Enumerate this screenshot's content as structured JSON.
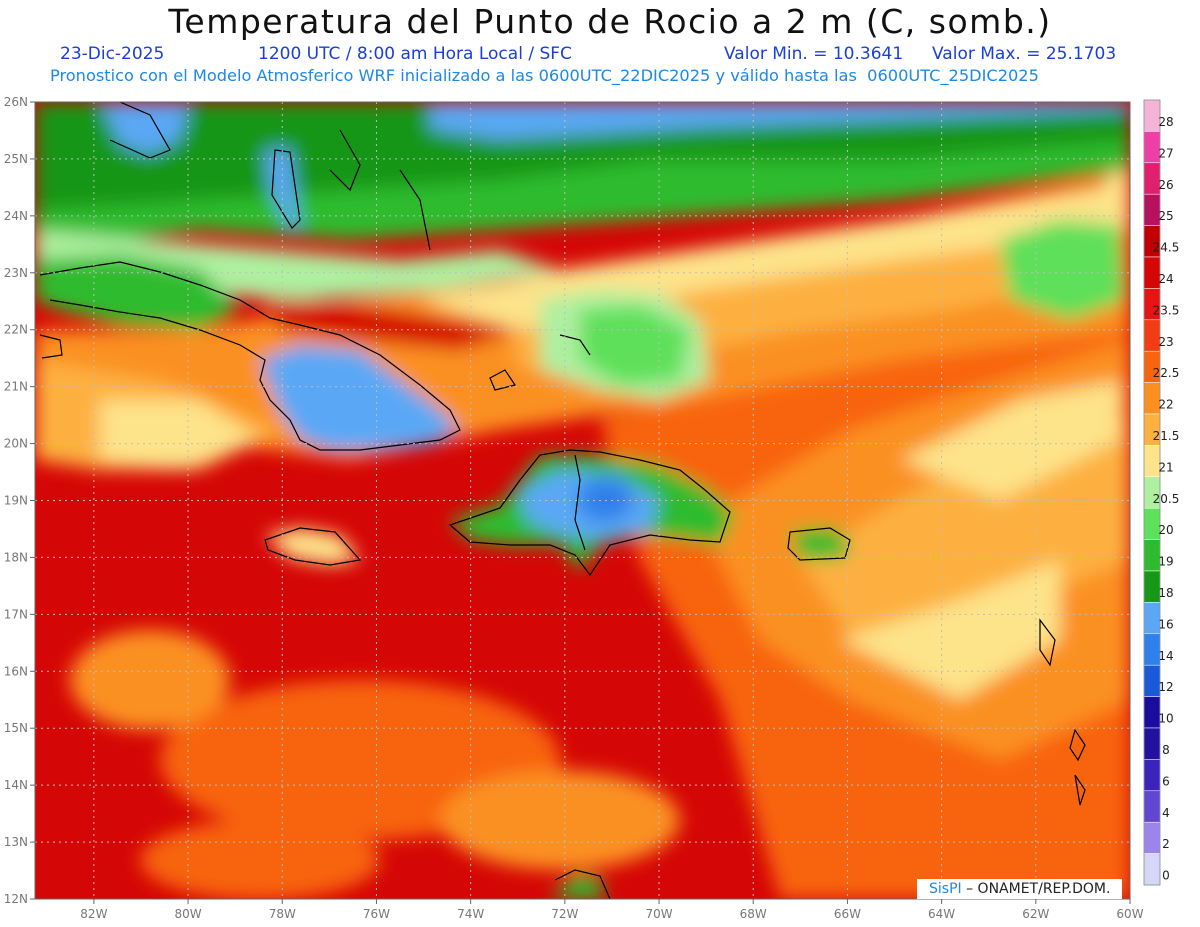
{
  "header": {
    "title": "Temperatura del Punto de Rocio a 2 m (C, somb.)",
    "date": "23-Dic-2025",
    "time": "1200 UTC / 8:00 am Hora Local / SFC",
    "min_value": "Valor Min. = 10.3641",
    "max_value": "Valor Max. = 25.1703",
    "subtitle": "Pronostico con el Modelo Atmosferico WRF inicializado a las 0600UTC_22DIC2025 y válido hasta las  0600UTC_25DIC2025"
  },
  "map": {
    "lon_range": [
      -83.25,
      -60
    ],
    "lat_range": [
      12,
      26
    ],
    "lon_ticks": [
      "82W",
      "80W",
      "78W",
      "76W",
      "74W",
      "72W",
      "70W",
      "68W",
      "66W",
      "64W",
      "62W",
      "60W"
    ],
    "lon_values": [
      -82,
      -80,
      -78,
      -76,
      -74,
      -72,
      -70,
      -68,
      -66,
      -64,
      -62,
      -60
    ],
    "lat_ticks": [
      "12N",
      "13N",
      "14N",
      "15N",
      "16N",
      "17N",
      "18N",
      "19N",
      "20N",
      "21N",
      "22N",
      "23N",
      "24N",
      "25N",
      "26N"
    ],
    "lat_values": [
      12,
      13,
      14,
      15,
      16,
      17,
      18,
      19,
      20,
      21,
      22,
      23,
      24,
      25,
      26
    ],
    "grid": true
  },
  "colorbar": {
    "labels": [
      "28",
      "27",
      "26",
      "25",
      "24.5",
      "24",
      "23.5",
      "23",
      "22.5",
      "22",
      "21.5",
      "21",
      "20.5",
      "20",
      "19",
      "18",
      "16",
      "14",
      "12",
      "10",
      "8",
      "6",
      "4",
      "2",
      "0"
    ],
    "colors": [
      "#f4b4d8",
      "#ee3fa6",
      "#e0206f",
      "#b81060",
      "#c00000",
      "#d50606",
      "#e61414",
      "#f43c14",
      "#f86410",
      "#fb9020",
      "#fdb040",
      "#fde38a",
      "#aef0a0",
      "#5fe05a",
      "#2fbb2f",
      "#189618",
      "#5aa8f5",
      "#2e80ec",
      "#1a5ad8",
      "#1a0c9c",
      "#22109e",
      "#3a24bc",
      "#6046d0",
      "#9c84ec",
      "#d6d6f8"
    ]
  },
  "credit": {
    "logo": "SisPI",
    "text": " – ONAMET/REP.DOM."
  }
}
